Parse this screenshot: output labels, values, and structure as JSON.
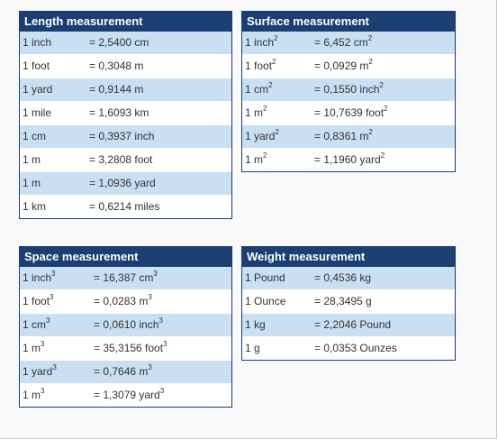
{
  "tables": [
    {
      "title": "Length measurement",
      "rows": [
        {
          "unit": "1 inch",
          "unit_exp": "",
          "value": "= 2,5400 cm",
          "value_exp": ""
        },
        {
          "unit": "1 foot",
          "unit_exp": "",
          "value": "= 0,3048 m",
          "value_exp": ""
        },
        {
          "unit": "1 yard",
          "unit_exp": "",
          "value": "= 0,9144 m",
          "value_exp": ""
        },
        {
          "unit": "1 mile",
          "unit_exp": "",
          "value": "= 1,6093 km",
          "value_exp": ""
        },
        {
          "unit": "1 cm",
          "unit_exp": "",
          "value": "= 0,3937 inch",
          "value_exp": ""
        },
        {
          "unit": "1 m",
          "unit_exp": "",
          "value": "= 3,2808 foot",
          "value_exp": ""
        },
        {
          "unit": "1 m",
          "unit_exp": "",
          "value": "= 1,0936 yard",
          "value_exp": ""
        },
        {
          "unit": "1 km",
          "unit_exp": "",
          "value": "= 0,6214 miles",
          "value_exp": ""
        }
      ]
    },
    {
      "title": "Surface measurement",
      "rows": [
        {
          "unit": "1 inch",
          "unit_exp": "2",
          "value": "= 6,452 cm",
          "value_exp": "2"
        },
        {
          "unit": "1 foot",
          "unit_exp": "2",
          "value": "= 0,0929 m",
          "value_exp": "2"
        },
        {
          "unit": "1 cm",
          "unit_exp": "2",
          "value": "= 0,1550 inch",
          "value_exp": "2"
        },
        {
          "unit": "1 m",
          "unit_exp": "2",
          "value": "= 10,7639 foot",
          "value_exp": "2"
        },
        {
          "unit": "1 yard",
          "unit_exp": "2",
          "value": "= 0,8361 m",
          "value_exp": "2"
        },
        {
          "unit": "1 m",
          "unit_exp": "2",
          "value": "= 1,1960 yard",
          "value_exp": "2"
        }
      ]
    },
    {
      "title": "Space measurement",
      "rows": [
        {
          "unit": "1 inch",
          "unit_exp": "3",
          "value": "= 16,387 cm",
          "value_exp": "3"
        },
        {
          "unit": "1 foot",
          "unit_exp": "3",
          "value": "= 0,0283 m",
          "value_exp": "3"
        },
        {
          "unit": "1 cm",
          "unit_exp": "3",
          "value": "= 0,0610 inch",
          "value_exp": "3"
        },
        {
          "unit": "1 m",
          "unit_exp": "3",
          "value": "= 35,3156 foot",
          "value_exp": "3"
        },
        {
          "unit": "1 yard",
          "unit_exp": "3",
          "value": "= 0,7646 m",
          "value_exp": "3"
        },
        {
          "unit": "1 m",
          "unit_exp": "3",
          "value": "= 1,3079 yard",
          "value_exp": "3"
        }
      ]
    },
    {
      "title": "Weight measurement",
      "rows": [
        {
          "unit": "1 Pound",
          "unit_exp": "",
          "value": "= 0,4536 kg",
          "value_exp": ""
        },
        {
          "unit": "1 Ounce",
          "unit_exp": "",
          "value": "= 28,3495 g",
          "value_exp": ""
        },
        {
          "unit": "1 kg",
          "unit_exp": "",
          "value": "= 2,2046 Pound",
          "value_exp": ""
        },
        {
          "unit": "1 g",
          "unit_exp": "",
          "value": "= 0,0353 Ounzes",
          "value_exp": ""
        }
      ]
    }
  ],
  "colors": {
    "header_bg": "#1b3f73",
    "header_text": "#ffffff",
    "row_alt_bg": "#c9dff2",
    "row_bg": "#ffffff"
  }
}
